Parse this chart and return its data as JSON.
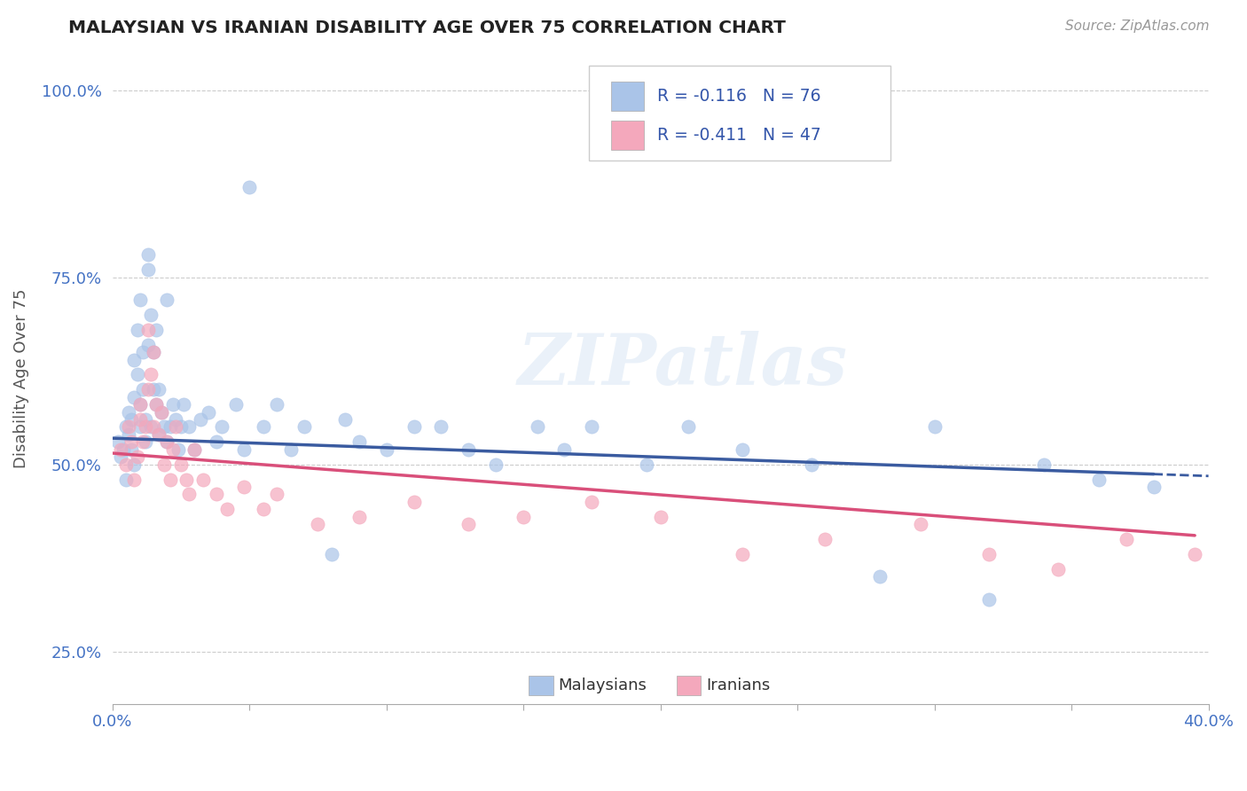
{
  "title": "MALAYSIAN VS IRANIAN DISABILITY AGE OVER 75 CORRELATION CHART",
  "source_text": "Source: ZipAtlas.com",
  "ylabel": "Disability Age Over 75",
  "xlim": [
    0.0,
    0.4
  ],
  "ylim": [
    0.18,
    1.05
  ],
  "xticks": [
    0.0,
    0.05,
    0.1,
    0.15,
    0.2,
    0.25,
    0.3,
    0.35,
    0.4
  ],
  "xticklabels": [
    "0.0%",
    "",
    "",
    "",
    "",
    "",
    "",
    "",
    "40.0%"
  ],
  "yticks": [
    0.25,
    0.5,
    0.75,
    1.0
  ],
  "yticklabels": [
    "25.0%",
    "50.0%",
    "75.0%",
    "100.0%"
  ],
  "grid_color": "#cccccc",
  "background_color": "#ffffff",
  "malaysian_color": "#aac4e8",
  "iranian_color": "#f4a8bc",
  "trend_malaysian_color": "#3a5ba0",
  "trend_iranian_color": "#d94f7a",
  "R_malaysian": -0.116,
  "N_malaysian": 76,
  "R_iranian": -0.411,
  "N_iranian": 47,
  "legend_label_malaysian": "Malaysians",
  "legend_label_iranian": "Iranians",
  "watermark": "ZIPatlas",
  "malaysian_x": [
    0.002,
    0.003,
    0.004,
    0.005,
    0.005,
    0.006,
    0.006,
    0.007,
    0.007,
    0.008,
    0.008,
    0.008,
    0.009,
    0.009,
    0.01,
    0.01,
    0.01,
    0.011,
    0.011,
    0.012,
    0.012,
    0.013,
    0.013,
    0.013,
    0.014,
    0.014,
    0.015,
    0.015,
    0.016,
    0.016,
    0.017,
    0.017,
    0.018,
    0.019,
    0.02,
    0.02,
    0.021,
    0.022,
    0.023,
    0.024,
    0.025,
    0.026,
    0.028,
    0.03,
    0.032,
    0.035,
    0.038,
    0.04,
    0.045,
    0.048,
    0.05,
    0.055,
    0.06,
    0.065,
    0.07,
    0.08,
    0.085,
    0.09,
    0.1,
    0.11,
    0.12,
    0.13,
    0.14,
    0.155,
    0.165,
    0.175,
    0.195,
    0.21,
    0.23,
    0.255,
    0.28,
    0.3,
    0.32,
    0.34,
    0.36,
    0.38
  ],
  "malaysian_y": [
    0.53,
    0.51,
    0.52,
    0.55,
    0.48,
    0.54,
    0.57,
    0.56,
    0.52,
    0.5,
    0.59,
    0.64,
    0.62,
    0.68,
    0.55,
    0.58,
    0.72,
    0.6,
    0.65,
    0.53,
    0.56,
    0.76,
    0.78,
    0.66,
    0.7,
    0.55,
    0.6,
    0.65,
    0.68,
    0.58,
    0.54,
    0.6,
    0.57,
    0.55,
    0.53,
    0.72,
    0.55,
    0.58,
    0.56,
    0.52,
    0.55,
    0.58,
    0.55,
    0.52,
    0.56,
    0.57,
    0.53,
    0.55,
    0.58,
    0.52,
    0.87,
    0.55,
    0.58,
    0.52,
    0.55,
    0.38,
    0.56,
    0.53,
    0.52,
    0.55,
    0.55,
    0.52,
    0.5,
    0.55,
    0.52,
    0.55,
    0.5,
    0.55,
    0.52,
    0.5,
    0.35,
    0.55,
    0.32,
    0.5,
    0.48,
    0.47
  ],
  "iranian_x": [
    0.003,
    0.005,
    0.006,
    0.007,
    0.008,
    0.009,
    0.01,
    0.01,
    0.011,
    0.012,
    0.013,
    0.013,
    0.014,
    0.015,
    0.015,
    0.016,
    0.017,
    0.018,
    0.019,
    0.02,
    0.021,
    0.022,
    0.023,
    0.025,
    0.027,
    0.028,
    0.03,
    0.033,
    0.038,
    0.042,
    0.048,
    0.055,
    0.06,
    0.075,
    0.09,
    0.11,
    0.13,
    0.15,
    0.175,
    0.2,
    0.23,
    0.26,
    0.295,
    0.32,
    0.345,
    0.37,
    0.395
  ],
  "iranian_y": [
    0.52,
    0.5,
    0.55,
    0.53,
    0.48,
    0.51,
    0.56,
    0.58,
    0.53,
    0.55,
    0.68,
    0.6,
    0.62,
    0.55,
    0.65,
    0.58,
    0.54,
    0.57,
    0.5,
    0.53,
    0.48,
    0.52,
    0.55,
    0.5,
    0.48,
    0.46,
    0.52,
    0.48,
    0.46,
    0.44,
    0.47,
    0.44,
    0.46,
    0.42,
    0.43,
    0.45,
    0.42,
    0.43,
    0.45,
    0.43,
    0.38,
    0.4,
    0.42,
    0.38,
    0.36,
    0.4,
    0.38
  ],
  "trend_m_x0": 0.0,
  "trend_m_y0": 0.535,
  "trend_m_x1": 0.38,
  "trend_m_y1": 0.487,
  "trend_m_dash_x0": 0.38,
  "trend_m_dash_x1": 0.4,
  "trend_i_x0": 0.0,
  "trend_i_y0": 0.515,
  "trend_i_x1": 0.395,
  "trend_i_y1": 0.405
}
